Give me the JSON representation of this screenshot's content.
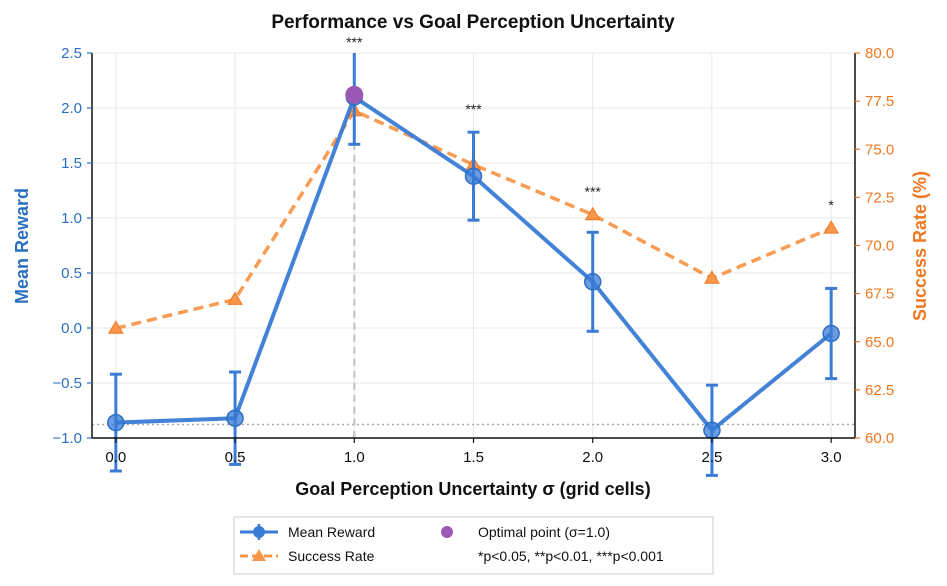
{
  "chart_data": {
    "type": "line",
    "title": "Performance vs Goal Perception Uncertainty",
    "xlabel": "Goal Perception Uncertainty σ (grid cells)",
    "ylabel_left": "Mean Reward",
    "ylabel_right": "Success Rate (%)",
    "x": [
      0.0,
      0.5,
      1.0,
      1.5,
      2.0,
      2.5,
      3.0
    ],
    "x_tick_labels": [
      "0.0",
      "0.5",
      "1.0",
      "1.5",
      "2.0",
      "2.5",
      "3.0"
    ],
    "xlim": [
      -0.1,
      3.1
    ],
    "ylim_left": [
      -1.0,
      2.5
    ],
    "ylim_right": [
      60.0,
      80.0
    ],
    "left_ticks": [
      "2.5",
      "2.0",
      "1.5",
      "1.0",
      "0.5",
      "0.0",
      "−0.5",
      "−1.0"
    ],
    "right_ticks": [
      "80.0",
      "77.5",
      "75.0",
      "72.5",
      "70.0",
      "67.5",
      "65.0",
      "62.5",
      "60.0"
    ],
    "series": [
      {
        "name": "Mean Reward",
        "axis": "left",
        "color": "#3a7bd5",
        "values": [
          -0.86,
          -0.82,
          2.1,
          1.38,
          0.42,
          -0.93,
          -0.05
        ],
        "error": [
          0.44,
          0.42,
          0.43,
          0.4,
          0.45,
          0.41,
          0.41
        ]
      },
      {
        "name": "Success Rate",
        "axis": "right",
        "color": "#f8964a",
        "values": [
          65.7,
          67.2,
          77.0,
          74.2,
          71.6,
          68.3,
          70.9
        ]
      }
    ],
    "significance": [
      {
        "x": 1.0,
        "label": "***"
      },
      {
        "x": 1.5,
        "label": "***"
      },
      {
        "x": 2.0,
        "label": "***"
      },
      {
        "x": 3.0,
        "label": "*"
      }
    ],
    "optimal_point": {
      "x": 1.0,
      "y": 2.12,
      "color": "#9b59b6"
    },
    "optimal_vline_x": 1.0,
    "baseline_right": 60.7,
    "legend": {
      "position": "bottom-center",
      "entries": [
        "Mean Reward",
        "Success Rate",
        "Optimal point (σ=1.0)",
        "*p<0.05, **p<0.01, ***p<0.001"
      ]
    },
    "colors": {
      "left_axis": "#2a6fc2",
      "right_axis": "#f07820",
      "optimal": "#9b59b6"
    }
  }
}
